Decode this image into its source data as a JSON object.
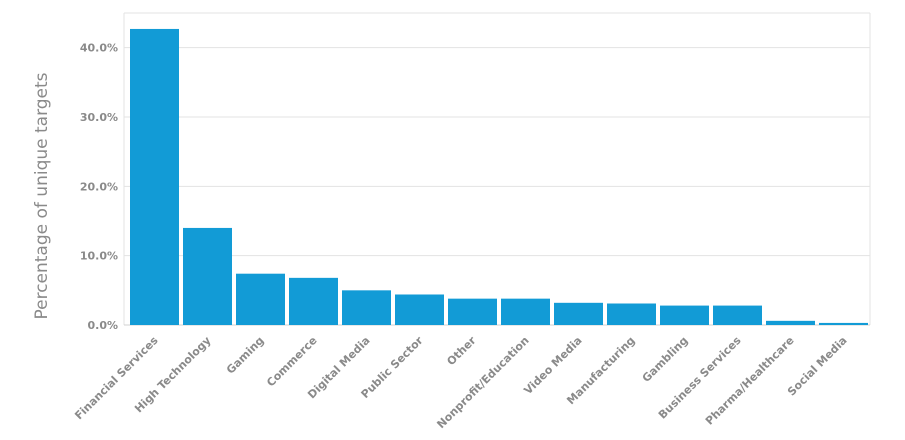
{
  "chart_data": {
    "type": "bar",
    "title": "",
    "xlabel": "",
    "ylabel": "Percentage of unique targets",
    "ylim": [
      0,
      45
    ],
    "yticks": [
      0,
      10,
      20,
      30,
      40
    ],
    "ytick_labels": [
      "0.0%",
      "10.0%",
      "20.0%",
      "30.0%",
      "40.0%"
    ],
    "grid": true,
    "bar_color": "#129bd6",
    "categories": [
      "Financial Services",
      "High Technology",
      "Gaming",
      "Commerce",
      "Digital Media",
      "Public Sector",
      "Other",
      "Nonprofit/Education",
      "Video Media",
      "Manufacturing",
      "Gambling",
      "Business Services",
      "Pharma/Healthcare",
      "Social Media"
    ],
    "values": [
      42.7,
      14.0,
      7.4,
      6.8,
      5.0,
      4.4,
      3.8,
      3.8,
      3.2,
      3.1,
      2.8,
      2.8,
      0.6,
      0.3
    ]
  }
}
